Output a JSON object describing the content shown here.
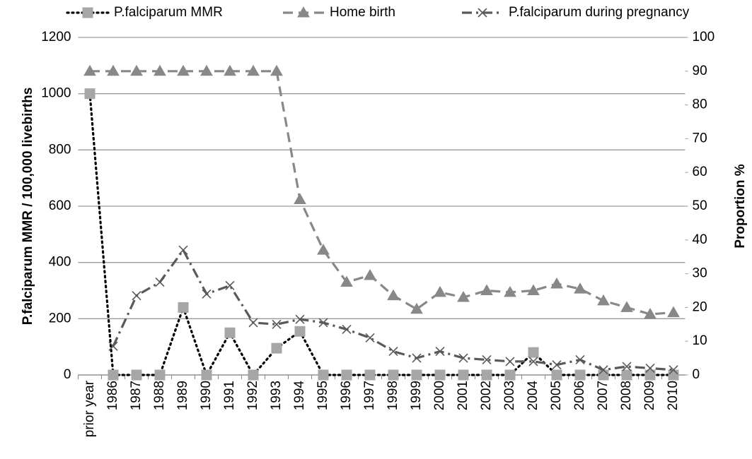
{
  "chart_data": {
    "type": "line",
    "y_label": "P.falciparum MMR / 100,000 livebirths",
    "y2_label": "Proportion %",
    "categories": [
      "prior year",
      "1986",
      "1987",
      "1988",
      "1989",
      "1990",
      "1991",
      "1992",
      "1993",
      "1994",
      "1995",
      "1996",
      "1997",
      "1998",
      "1999",
      "2000",
      "2001",
      "2002",
      "2003",
      "2004",
      "2005",
      "2006",
      "2007",
      "2008",
      "2009",
      "2010"
    ],
    "ylim": [
      0,
      1200
    ],
    "yticks": [
      0,
      200,
      400,
      600,
      800,
      1000,
      1200
    ],
    "y2lim": [
      0,
      100
    ],
    "y2ticks": [
      0,
      10,
      20,
      30,
      40,
      50,
      60,
      70,
      80,
      90,
      100
    ],
    "grid": true,
    "legend": "top",
    "series": [
      {
        "name": "P.falciparum MMR",
        "color": "#000000",
        "marker_color": "#a6a6a6",
        "marker": "square",
        "line_style": "dotted",
        "values": [
          1000,
          0,
          0,
          0,
          240,
          0,
          150,
          0,
          95,
          155,
          0,
          0,
          0,
          0,
          0,
          0,
          0,
          0,
          0,
          80,
          0,
          0,
          0,
          0,
          0,
          0
        ]
      },
      {
        "name": "Home birth",
        "color": "#888888",
        "marker_color": "#888888",
        "marker": "triangle",
        "line_style": "dashed",
        "axis": "y2",
        "values": [
          90,
          90,
          90,
          90,
          90,
          90,
          90,
          90,
          90,
          52,
          37,
          27.5,
          29.5,
          23.5,
          19.5,
          24.5,
          23,
          25,
          24.5,
          25,
          27,
          25.5,
          22,
          20,
          18,
          18.5
        ]
      },
      {
        "name": "P.falciparum during pregnancy",
        "color": "#595959",
        "marker_color": "#595959",
        "marker": "x",
        "line_style": "dashdot",
        "axis": "y2",
        "values": [
          null,
          8.5,
          23.5,
          27.5,
          37,
          24,
          26.5,
          15.5,
          15,
          16.5,
          15.5,
          13.5,
          11,
          7,
          5,
          7,
          5,
          4.5,
          4,
          4,
          3,
          4.5,
          1.5,
          2.5,
          2,
          1.5
        ]
      }
    ]
  }
}
